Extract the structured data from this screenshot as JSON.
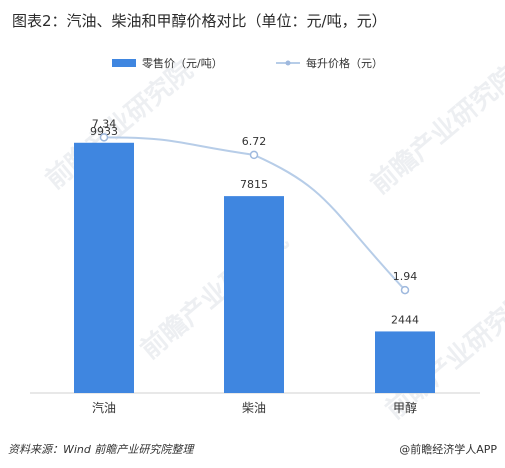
{
  "title": "图表2：汽油、柴油和甲醇价格对比（单位：元/吨，元）",
  "watermark": "前瞻产业研究院",
  "source": "资料来源：Wind  前瞻产业研究院整理",
  "brand": "@前瞻经济学人APP",
  "colors": {
    "bar": "#3f86e0",
    "line": "#b7cde8",
    "point": "#9fb9de"
  },
  "chart_data": {
    "type": "bar",
    "categories": [
      "汽油",
      "柴油",
      "甲醇"
    ],
    "series": [
      {
        "name": "零售价（元/吨）",
        "type": "bar",
        "axis": "left",
        "values": [
          9933,
          7815,
          2444
        ]
      },
      {
        "name": "每升价格（元）",
        "type": "line",
        "axis": "right",
        "values": [
          7.34,
          6.72,
          1.94
        ]
      }
    ],
    "legend_position": "top",
    "grid": false
  }
}
